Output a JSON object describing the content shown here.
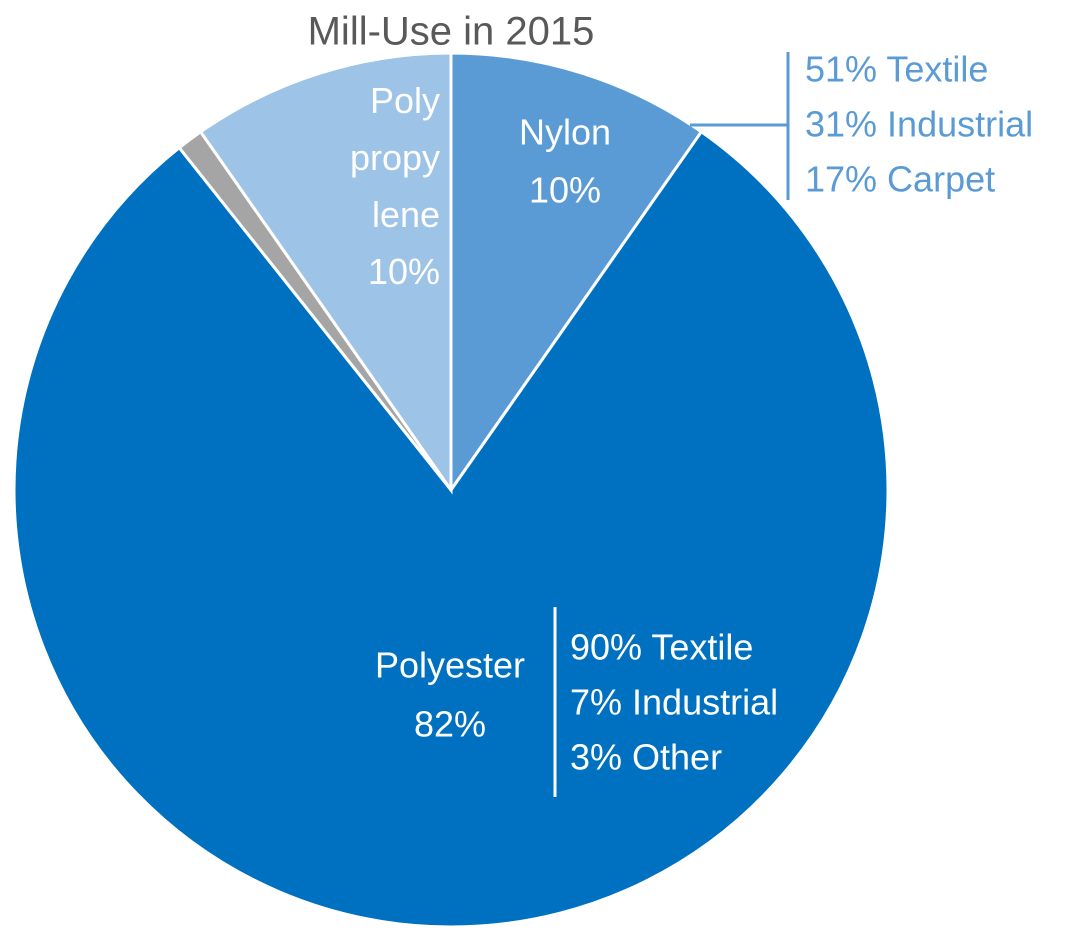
{
  "chart_data": {
    "type": "pie",
    "title": "Mill-Use in 2015",
    "categories": [
      "Nylon",
      "Polyester",
      null,
      "Poly propy lene"
    ],
    "values": [
      10,
      82,
      1,
      10
    ],
    "value_labels": [
      "10%",
      "82%",
      null,
      "10%"
    ],
    "colors": [
      "#5b9bd5",
      "#0070c0",
      "#a5a5a5",
      "#9dc3e6"
    ],
    "annotations": [
      {
        "lines": [
          "51% Textile",
          "31% Industrial",
          "17% Carpet"
        ]
      },
      {
        "lines": [
          "90% Textile",
          "7% Industrial",
          "3% Other"
        ]
      }
    ]
  }
}
